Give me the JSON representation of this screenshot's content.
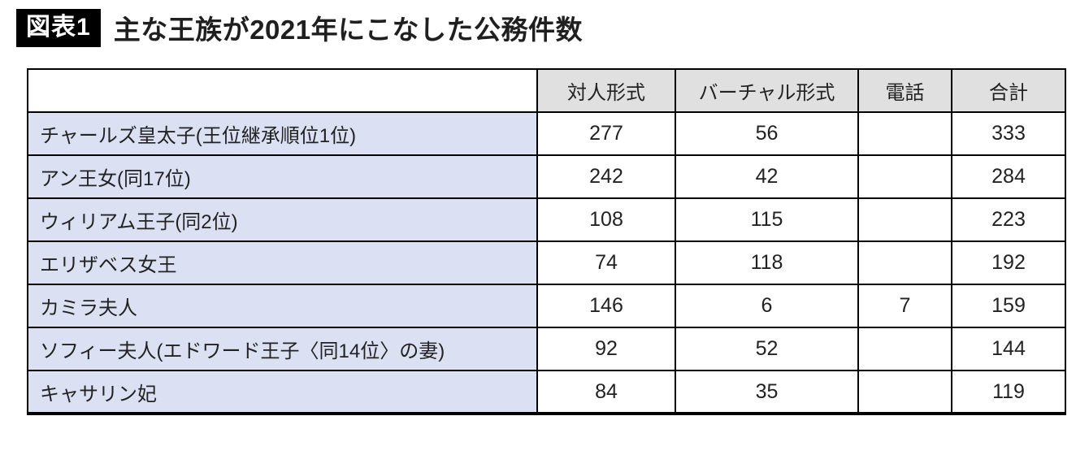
{
  "header": {
    "badge": "図表1",
    "title": "主な王族が2021年にこなした公務件数",
    "badge_bg": "#000000",
    "badge_text_color": "#ffffff"
  },
  "colors": {
    "table_border": "#000000",
    "column_header_bg": "#e0e0e0",
    "row_label_bg": "#dbe1f3",
    "cell_bg": "#ffffff"
  },
  "chart_data": {
    "type": "table",
    "title": "主な王族が2021年にこなした公務件数",
    "figure_label": "図表1",
    "columns": [
      "対人形式",
      "バーチャル形式",
      "電話",
      "合計"
    ],
    "rows": [
      {
        "label": "チャールズ皇太子(王位継承順位1位)",
        "values": [
          "277",
          "56",
          "",
          "333"
        ]
      },
      {
        "label": "アン王女(同17位)",
        "values": [
          "242",
          "42",
          "",
          "284"
        ]
      },
      {
        "label": "ウィリアム王子(同2位)",
        "values": [
          "108",
          "115",
          "",
          "223"
        ]
      },
      {
        "label": "エリザベス女王",
        "values": [
          "74",
          "118",
          "",
          "192"
        ]
      },
      {
        "label": "カミラ夫人",
        "values": [
          "146",
          "6",
          "7",
          "159"
        ]
      },
      {
        "label": "ソフィー夫人(エドワード王子〈同14位〉の妻)",
        "values": [
          "92",
          "52",
          "",
          "144"
        ]
      },
      {
        "label": "キャサリン妃",
        "values": [
          "84",
          "35",
          "",
          "119"
        ]
      }
    ]
  }
}
